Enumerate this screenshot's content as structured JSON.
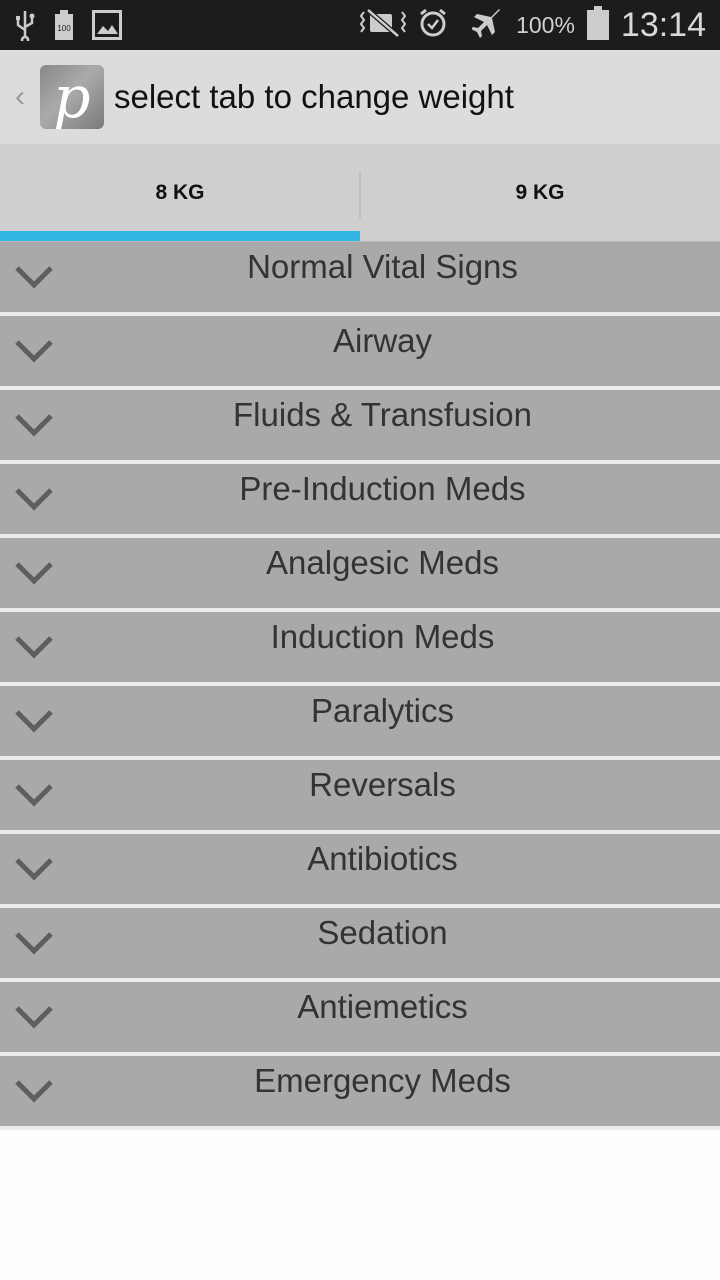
{
  "status_bar": {
    "icons": [
      "usb-icon",
      "battery-100-icon",
      "image-icon",
      "vibrate-mute-icon",
      "alarm-icon",
      "airplane-icon",
      "battery-icon"
    ],
    "battery": "100%",
    "time": "13:14"
  },
  "app_bar": {
    "title": "select tab to change weight",
    "logo_letter": "p"
  },
  "tabs": [
    {
      "label": "8 KG",
      "selected": true
    },
    {
      "label": "9 KG",
      "selected": false
    }
  ],
  "accent_color": "#33b5e5",
  "sections": [
    {
      "label": "Normal Vital Signs"
    },
    {
      "label": "Airway"
    },
    {
      "label": "Fluids & Transfusion"
    },
    {
      "label": "Pre-Induction Meds"
    },
    {
      "label": "Analgesic Meds"
    },
    {
      "label": "Induction Meds"
    },
    {
      "label": "Paralytics"
    },
    {
      "label": "Reversals"
    },
    {
      "label": "Antibiotics"
    },
    {
      "label": "Sedation"
    },
    {
      "label": "Antiemetics"
    },
    {
      "label": "Emergency Meds"
    }
  ]
}
